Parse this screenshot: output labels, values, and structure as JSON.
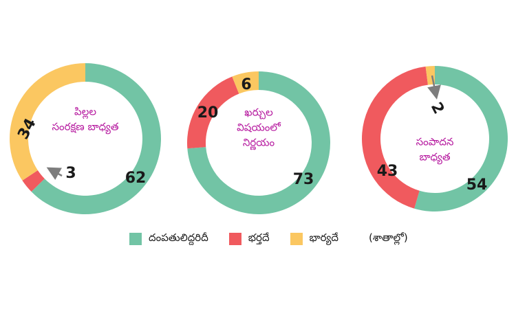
{
  "colors": {
    "couple": "#72c4a5",
    "husband": "#f05a5e",
    "wife": "#fbc761"
  },
  "chart_data": [
    {
      "type": "pie",
      "title": "పిల్లల సంరక్షణ బాధ్యత",
      "title_lines": [
        "పిల్లల",
        "సంరక్షణ బాధ్యత"
      ],
      "categories": [
        "దంపతులిద్దరిదీ",
        "భర్తదే",
        "భార్యదే"
      ],
      "values": [
        62,
        3,
        34
      ]
    },
    {
      "type": "pie",
      "title": "ఖర్చుల విషయంలో నిర్ణయం",
      "title_lines": [
        "ఖర్చుల",
        "విషయంలో",
        "నిర్ణయం"
      ],
      "categories": [
        "దంపతులిద్దరిదీ",
        "భర్తదే",
        "భార్యదే"
      ],
      "values": [
        73,
        20,
        6
      ]
    },
    {
      "type": "pie",
      "title": "సంపాదన బాధ్యత",
      "title_lines": [
        "సంపాదన",
        "బాధ్యత"
      ],
      "categories": [
        "దంపతులిద్దరిదీ",
        "భర్తదే",
        "భార్యదే"
      ],
      "values": [
        54,
        43,
        2
      ]
    }
  ],
  "legend": {
    "couple": "దంపతులిద్దరిదీ",
    "husband": "భర్తదే",
    "wife": "భార్యదే",
    "unit_note": "(శాతాల్లో)"
  }
}
